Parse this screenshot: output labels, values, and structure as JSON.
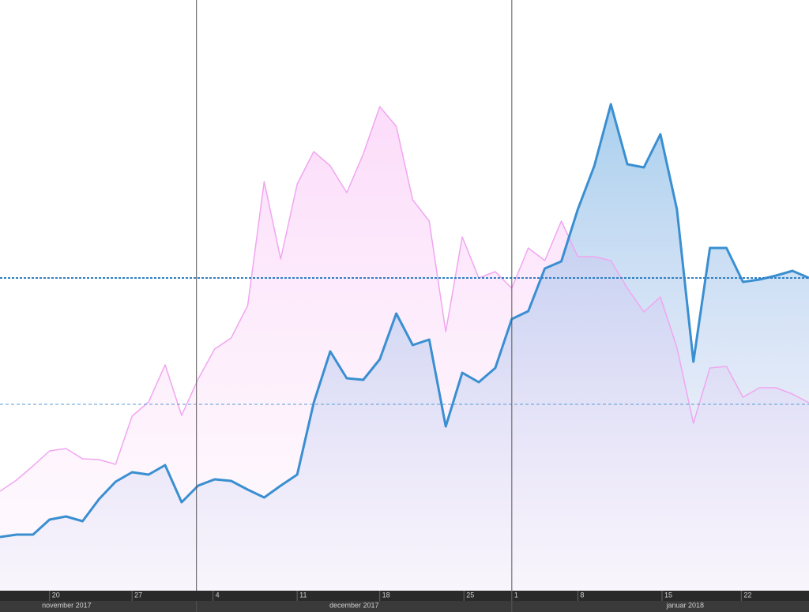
{
  "chart_data": {
    "type": "area",
    "categories": [
      null,
      null,
      null,
      null,
      null,
      null,
      null,
      null,
      null,
      null,
      null,
      null,
      null,
      null,
      null,
      null,
      null,
      null,
      null,
      null,
      null,
      null,
      null,
      null,
      null,
      null,
      null,
      null,
      null,
      null,
      null,
      null,
      null,
      null,
      null,
      null,
      null,
      null,
      null,
      null,
      null,
      null,
      null,
      null,
      null,
      null,
      null,
      null,
      null,
      null
    ],
    "series": [
      {
        "color": "#f0a6f0",
        "values": [
          126,
          140,
          158,
          177,
          180,
          167,
          166,
          160,
          221,
          239,
          286,
          222,
          268,
          306,
          320,
          361,
          518,
          420,
          515,
          556,
          538,
          504,
          553,
          613,
          588,
          495,
          468,
          328,
          448,
          396,
          404,
          383,
          434,
          418,
          468,
          423,
          423,
          418,
          383,
          353,
          372,
          308,
          212,
          282,
          284,
          245,
          257,
          257,
          249,
          238
        ]
      },
      {
        "color": "#3a8fd1",
        "values": [
          68,
          71,
          71,
          90,
          94,
          88,
          116,
          138,
          150,
          147,
          159,
          112,
          133,
          141,
          139,
          128,
          118,
          133,
          147,
          238,
          303,
          269,
          267,
          293,
          351,
          311,
          318,
          208,
          276,
          264,
          282,
          344,
          354,
          408,
          417,
          483,
          538,
          616,
          540,
          536,
          578,
          483,
          290,
          434,
          434,
          391,
          394,
          399,
          405,
          396
        ]
      }
    ],
    "ylim": [
      0,
      748
    ],
    "reference_lines": [
      {
        "value": 396,
        "color": "#2f7fc4"
      },
      {
        "value": 236,
        "color": "#5a9bd4"
      }
    ],
    "xticks": [
      {
        "value": 3,
        "label": "20"
      },
      {
        "value": 8,
        "label": "27"
      },
      {
        "value": 12.9,
        "label": "4"
      },
      {
        "value": 18,
        "label": "11"
      },
      {
        "value": 23,
        "label": "18"
      },
      {
        "value": 28.1,
        "label": "25"
      },
      {
        "value": 31,
        "label": "1"
      },
      {
        "value": 35,
        "label": "8"
      },
      {
        "value": 40.1,
        "label": "15"
      },
      {
        "value": 44.9,
        "label": "22"
      }
    ],
    "months": [
      {
        "label": "november 2017",
        "start": -8,
        "end": 11.9
      },
      {
        "label": "december 2017",
        "start": 11.9,
        "end": 31
      },
      {
        "label": "januar 2018",
        "start": 31,
        "end": 52
      }
    ]
  }
}
